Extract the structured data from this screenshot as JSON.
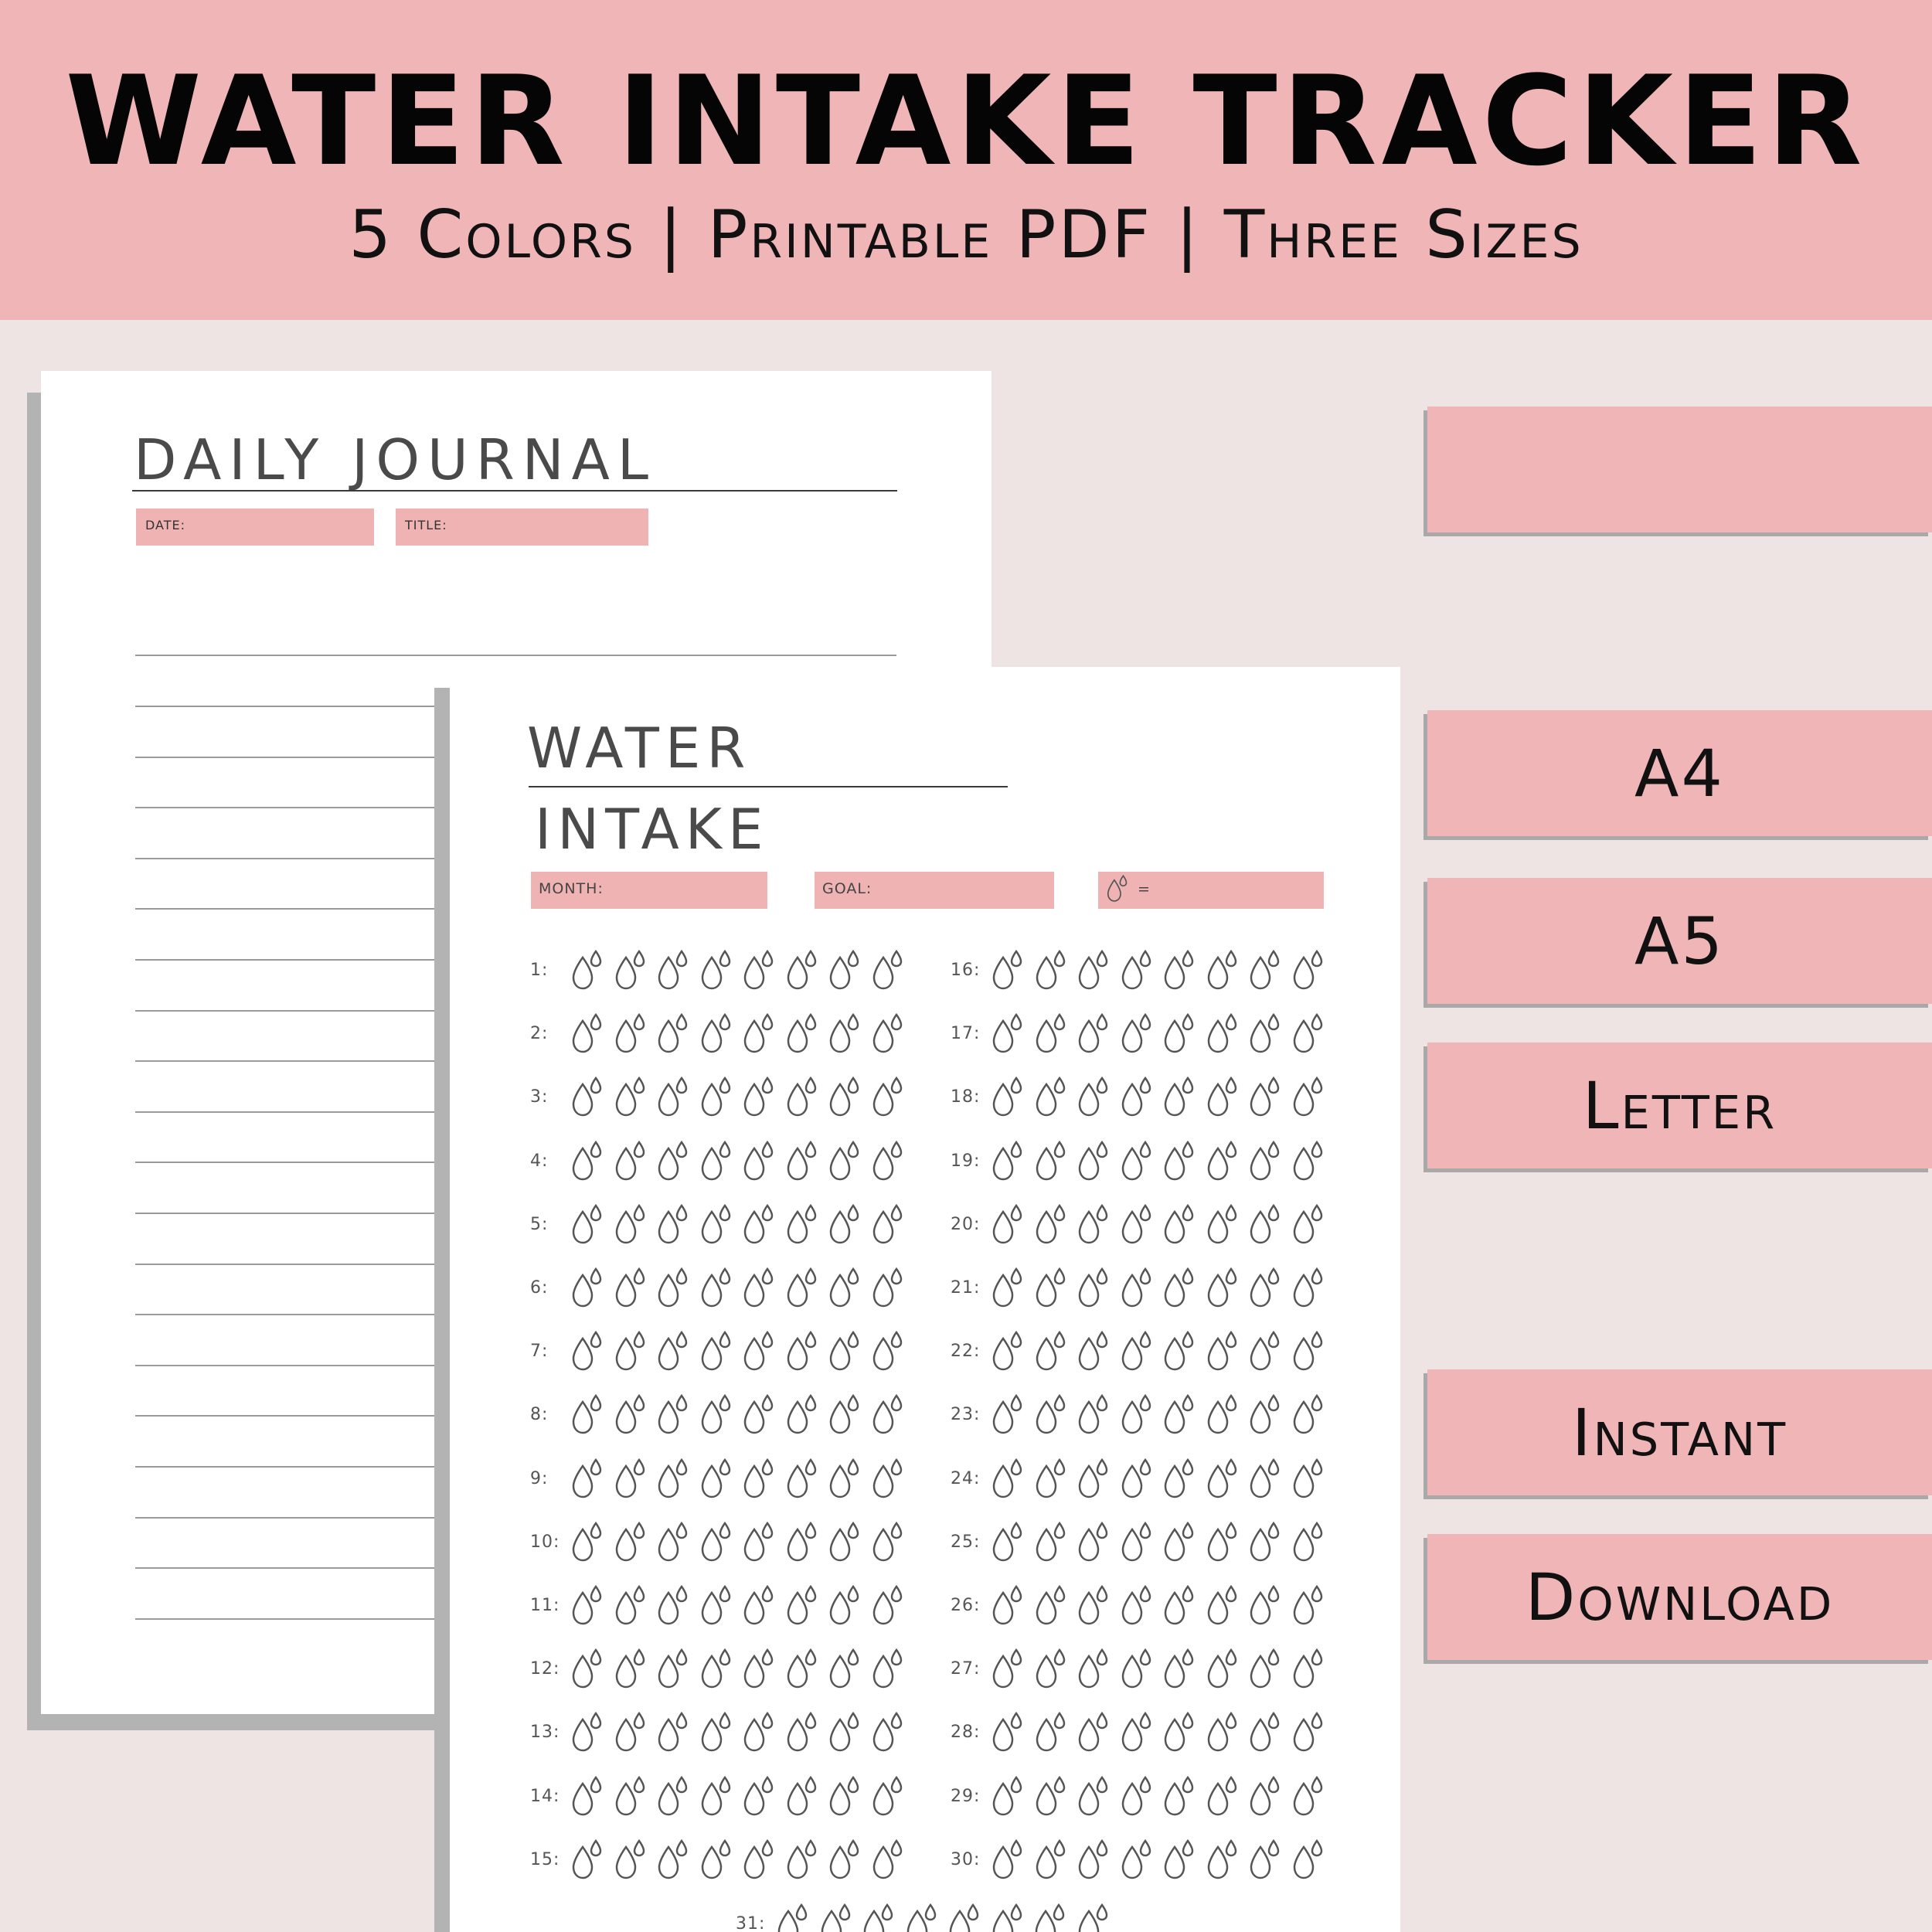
{
  "banner": {
    "title": "WATER INTAKE TRACKER",
    "subtitle": "5 Colors | Printable PDF | Three Sizes"
  },
  "journal": {
    "title": "DAILY JOURNAL",
    "date_label": "DATE:",
    "title_label": "TITLE:"
  },
  "water": {
    "title_line1": "WATER",
    "title_line2": "INTAKE",
    "month_label": "MONTH:",
    "goal_label": "GOAL:",
    "unit_label": "=",
    "days": [
      "1:",
      "2:",
      "3:",
      "4:",
      "5:",
      "6:",
      "7:",
      "8:",
      "9:",
      "10:",
      "11:",
      "12:",
      "13:",
      "14:",
      "15:",
      "16:",
      "17:",
      "18:",
      "19:",
      "20:",
      "21:",
      "22:",
      "23:",
      "24:",
      "25:",
      "26:",
      "27:",
      "28:",
      "29:",
      "30:",
      "31:"
    ],
    "drops_per_day": 8,
    "drop_icon": "water-drop-icon"
  },
  "tags": {
    "blank": "",
    "a4": "A4",
    "a5": "A5",
    "letter": "Letter",
    "instant": "Instant",
    "download": "Download"
  },
  "colors": {
    "accent": "#f0b5b6",
    "background": "#efe4e4",
    "shadow": "#b3b3b3"
  }
}
